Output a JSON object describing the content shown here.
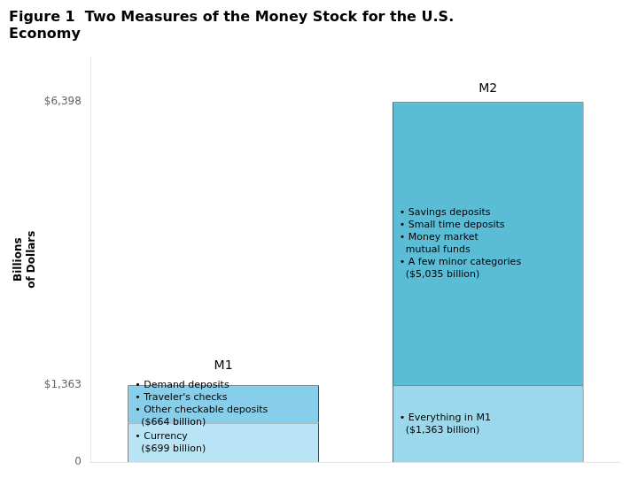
{
  "chart_data": {
    "type": "bar",
    "stacked": true,
    "title": "Figure 1  Two Measures of the Money Stock for the U.S.\nEconomy",
    "ylabel": "Billions\nof Dollars",
    "categories": [
      "M1",
      "M2"
    ],
    "series": [
      {
        "values": [
          699,
          1363
        ],
        "colors": [
          "#b8e4f5",
          "#9bd8ec"
        ],
        "annotations": [
          "• Currency\n  ($699 billion)",
          "• Everything in M1\n  ($1,363 billion)"
        ]
      },
      {
        "values": [
          664,
          5035
        ],
        "colors": [
          "#87ceeb",
          "#5bbcd6"
        ],
        "annotations": [
          "• Demand deposits\n• Traveler's checks\n• Other checkable deposits\n  ($664 billion)",
          "• Savings deposits\n• Small time deposits\n• Money market\n  mutual funds\n• A few minor categories\n  ($5,035 billion)"
        ]
      }
    ],
    "ylim": [
      0,
      7200
    ],
    "yticks": [
      0,
      {
        "value": 1363,
        "label": "$1,363"
      },
      {
        "value": 6398,
        "label": "$6,398"
      }
    ],
    "grid": false,
    "tick_labels": "y"
  }
}
